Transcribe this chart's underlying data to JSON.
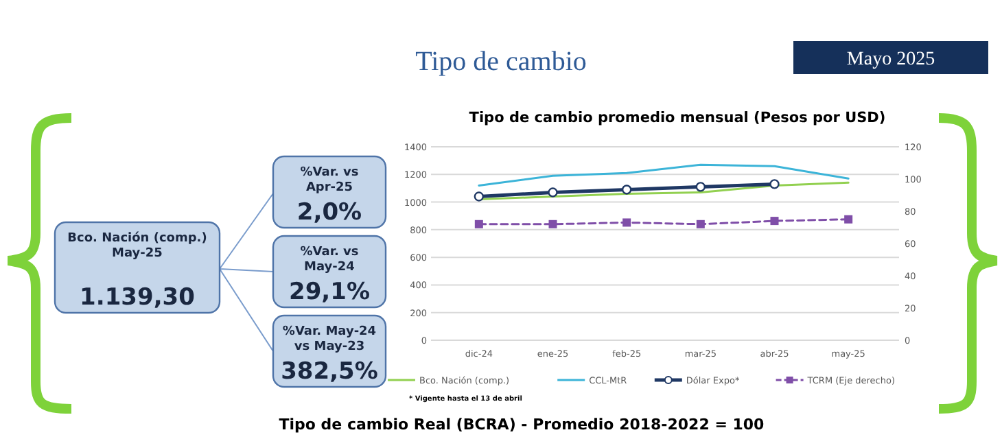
{
  "chart_data": {
    "type": "line",
    "title": "Tipo de cambio promedio mensual (Pesos por USD)",
    "categories": [
      "dic-24",
      "ene-25",
      "feb-25",
      "mar-25",
      "abr-25",
      "may-25"
    ],
    "series": [
      {
        "name": "Bco. Nación (comp.)",
        "color": "#92d050",
        "values": [
          1020,
          1040,
          1060,
          1070,
          1120,
          1140
        ],
        "marker": "none",
        "line_style": "solid"
      },
      {
        "name": "CCL-MtR",
        "color": "#3cb4d8",
        "values": [
          1120,
          1190,
          1210,
          1270,
          1260,
          1170
        ],
        "marker": "none",
        "line_style": "solid"
      },
      {
        "name": "Dólar Expo*",
        "color": "#1f3864",
        "values": [
          1040,
          1070,
          1090,
          1110,
          1130,
          null
        ],
        "marker": "circle",
        "line_style": "solid"
      },
      {
        "name": "TCRM (Eje derecho)",
        "color": "#7f4ea8",
        "values": [
          72,
          72,
          73,
          72,
          74,
          75
        ],
        "marker": "square",
        "line_style": "dashed",
        "axis": "y2"
      }
    ],
    "ylim": [
      0,
      1400
    ],
    "yticks": [
      0,
      200,
      400,
      600,
      800,
      1000,
      1200,
      1400
    ],
    "y2lim": [
      0,
      120
    ],
    "y2ticks": [
      0,
      20,
      40,
      60,
      80,
      100,
      120
    ],
    "grid": "y",
    "legend": "bottom",
    "annotations": [
      "Tipo de cambio",
      "Mayo 2025",
      "Bco. Nación (comp.)\nMay-25",
      "1.139,30",
      "%Var. vs\nApr-25",
      "2,0%",
      "%Var. vs\nMay-24",
      "29,1%",
      "%Var. May-24\nvs May-23",
      "382,5%",
      "* Vigente hasta el 13 de abril",
      "Tipo de cambio Real (BCRA) - Promedio 2018-2022 = 100"
    ]
  }
}
